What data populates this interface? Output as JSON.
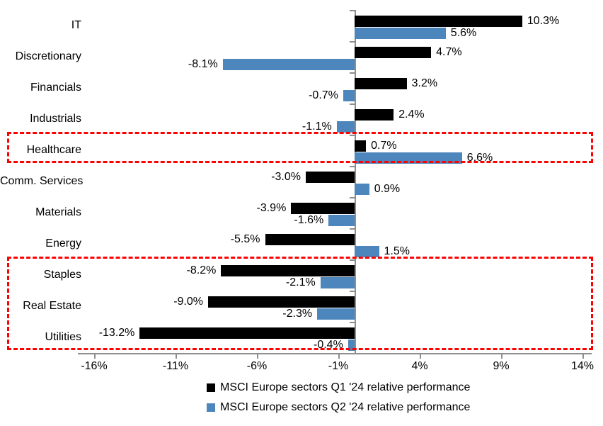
{
  "chart_data": {
    "type": "bar",
    "orientation": "horizontal",
    "title": "",
    "categories": [
      "IT",
      "Discretionary",
      "Financials",
      "Industrials",
      "Healthcare",
      "Comm. Services",
      "Materials",
      "Energy",
      "Staples",
      "Real Estate",
      "Utilities"
    ],
    "series": [
      {
        "name": "MSCI Europe sectors Q1 '24 relative performance",
        "color": "#000000",
        "values": [
          10.3,
          4.7,
          3.2,
          2.4,
          0.7,
          -3.0,
          -3.9,
          -5.5,
          -8.2,
          -9.0,
          -13.2
        ],
        "labels": [
          "10.3%",
          "4.7%",
          "3.2%",
          "2.4%",
          "0.7%",
          "-3.0%",
          "-3.9%",
          "-5.5%",
          "-8.2%",
          "-9.0%",
          "-13.2%"
        ]
      },
      {
        "name": "MSCI Europe sectors Q2 '24 relative performance",
        "color": "#4d86bc",
        "values": [
          5.6,
          -8.1,
          -0.7,
          -1.1,
          6.6,
          0.9,
          -1.6,
          1.5,
          -2.1,
          -2.3,
          -0.4
        ],
        "labels": [
          "5.6%",
          "-8.1%",
          "-0.7%",
          "-1.1%",
          "6.6%",
          "0.9%",
          "-1.6%",
          "1.5%",
          "-2.1%",
          "-2.3%",
          "-0.4%"
        ]
      }
    ],
    "x_axis": {
      "ticks": [
        -16,
        -11,
        -6,
        -1,
        4,
        9,
        14
      ],
      "tick_labels": [
        "-16%",
        "-11%",
        "-6%",
        "-1%",
        "4%",
        "9%",
        "14%"
      ],
      "range": [
        -17,
        14.6
      ],
      "unit": "%",
      "grid": false
    },
    "legend": {
      "position": "bottom"
    },
    "highlights": [
      {
        "categories": [
          "Healthcare"
        ],
        "color": "#ff0000",
        "style": "dashed"
      },
      {
        "categories": [
          "Staples",
          "Real Estate",
          "Utilities"
        ],
        "color": "#ff0000",
        "style": "dashed"
      }
    ],
    "colors": {
      "q1_bar": "#000000",
      "q2_bar": "#4d86bc",
      "highlight": "#ff0000",
      "axis": "#8e8e8e",
      "text": "#000000",
      "background": "#ffffff"
    }
  }
}
